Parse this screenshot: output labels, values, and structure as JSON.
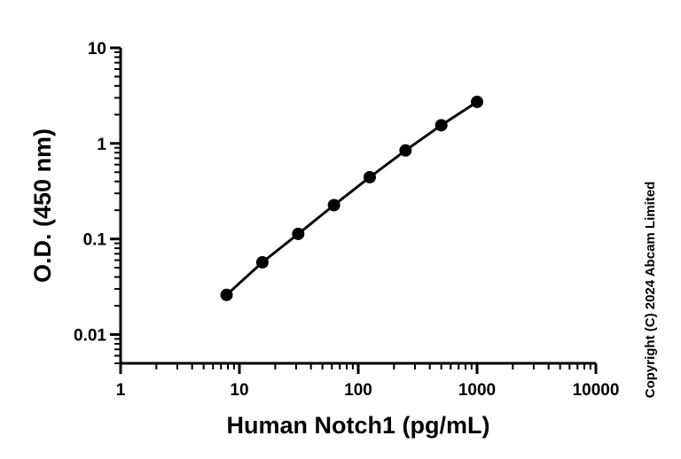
{
  "chart_data": {
    "type": "scatter",
    "xlabel": "Human Notch1 (pg/mL)",
    "ylabel": "O.D. (450 nm)",
    "x_scale": "log",
    "y_scale": "log",
    "xlim": [
      1,
      10000
    ],
    "ylim": [
      0.005,
      10
    ],
    "x_ticks": [
      "1",
      "10",
      "100",
      "1000",
      "10000"
    ],
    "y_ticks": [
      "0.01",
      "0.1",
      "1",
      "10"
    ],
    "grid": false,
    "legend": "none",
    "series": [
      {
        "x": [
          7.8,
          15.6,
          31.25,
          62.5,
          125,
          250,
          500,
          1000
        ],
        "y": [
          0.026,
          0.057,
          0.113,
          0.226,
          0.443,
          0.844,
          1.55,
          2.72
        ],
        "marker": "filled-circle",
        "line": "fitted-curve",
        "color": "#000000"
      }
    ]
  },
  "copyright": "Copyright (C) 2024 Abcam Limited"
}
